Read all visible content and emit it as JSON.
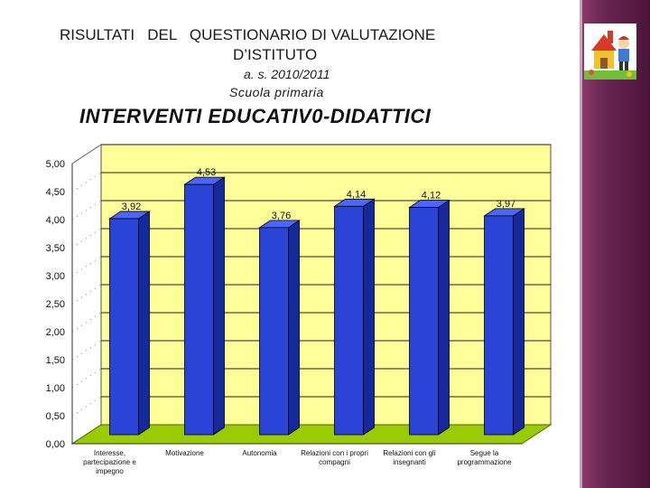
{
  "header": {
    "title_line1": "RISULTATI   DEL   QUESTIONARIO DI VALUTAZIONE",
    "title_line2": "D’ISTITUTO",
    "year": "a. s. 2010/2011",
    "school": "Scuola  primaria",
    "section_title": "INTERVENTI EDUCATIV0-DIDATTICI"
  },
  "logo": {
    "icon": "school-children-logo-icon"
  },
  "colors": {
    "sidebar": "#6a2452",
    "plot_wall": "#ffff99",
    "floor": "#99cc00",
    "bar": "#2a44d8",
    "bar_top": "#4a66ff",
    "bar_side": "#142a9c"
  },
  "chart_data": {
    "type": "bar",
    "categories": [
      "Interesse, partecipazione e impegno",
      "Motivazione",
      "Autonomia",
      "Relazioni con i propri compagni",
      "Relazioni con gli insegnanti",
      "Segue la programmazione"
    ],
    "category_lines": [
      [
        "Interesse,",
        "partecipazione e",
        "impegno"
      ],
      [
        "Motivazione"
      ],
      [
        "Autonomia"
      ],
      [
        "Relazioni con i propri",
        "compagni"
      ],
      [
        "Relazioni con gli",
        "insegnanti"
      ],
      [
        "Segue la",
        "programmazione"
      ]
    ],
    "values": [
      3.92,
      4.53,
      3.76,
      4.14,
      4.12,
      3.97
    ],
    "value_labels": [
      "3,92",
      "4,53",
      "3,76",
      "4,14",
      "4,12",
      "3,97"
    ],
    "y_ticks": [
      "0,00",
      "0,50",
      "1,00",
      "1,50",
      "2,00",
      "2,50",
      "3,00",
      "3,50",
      "4,00",
      "4,50",
      "5,00"
    ],
    "ylim": [
      0,
      5
    ],
    "grid": true,
    "legend": false
  }
}
